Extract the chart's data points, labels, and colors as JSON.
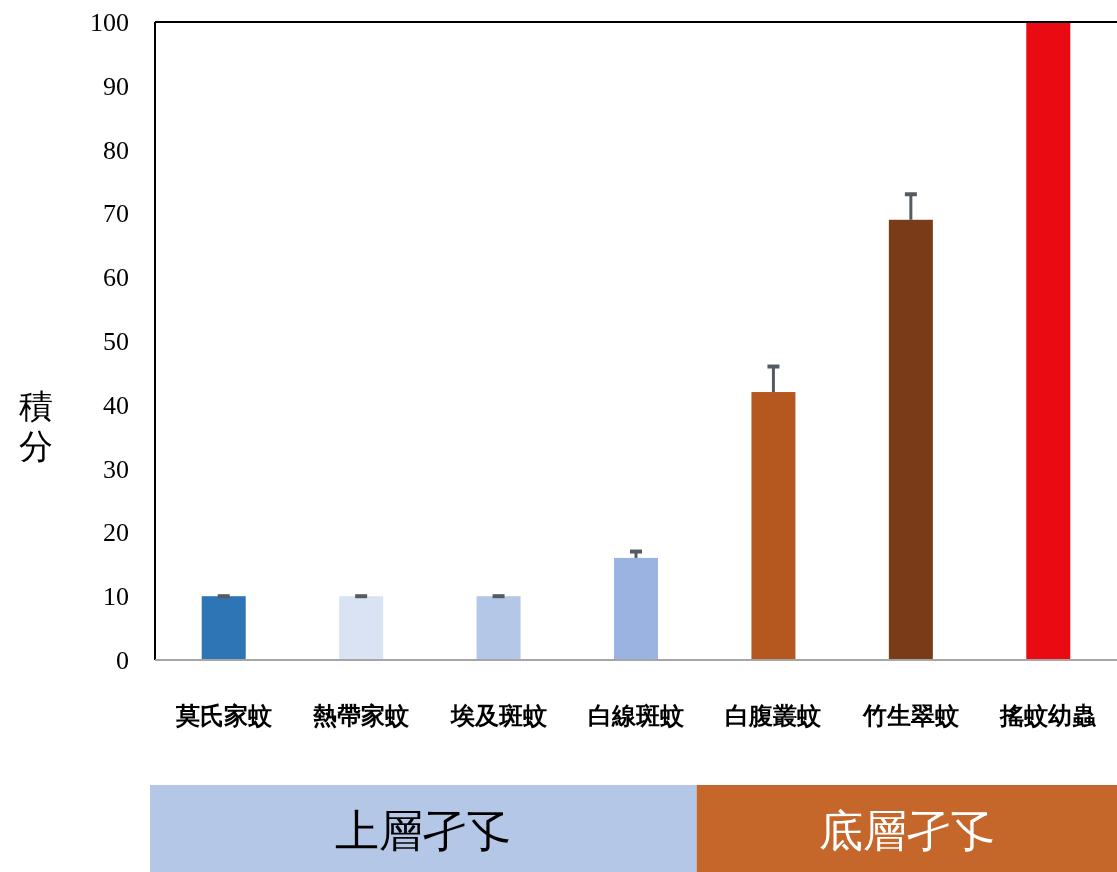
{
  "chart_data": {
    "type": "bar",
    "ylabel": "積分",
    "categories": [
      "莫氏家蚊",
      "熱帶家蚊",
      "埃及斑蚊",
      "白線斑蚊",
      "白腹叢蚊",
      "竹生翠蚊",
      "搖蚊幼蟲"
    ],
    "values": [
      10,
      10,
      10,
      16,
      42,
      69,
      100
    ],
    "colors": [
      "#2e75b6",
      "#dae3f3",
      "#b4c7e7",
      "#9bb3e0",
      "#b5581f",
      "#7a3c18",
      "#ea0a12"
    ],
    "errors": [
      [
        10,
        10
      ],
      [
        10,
        10
      ],
      [
        10,
        10
      ],
      [
        16,
        17
      ],
      [
        42,
        46
      ],
      [
        69,
        73
      ],
      null
    ],
    "ylim": [
      0,
      100
    ],
    "yticks": [
      0,
      10,
      20,
      30,
      40,
      50,
      60,
      70,
      80,
      90,
      100
    ],
    "grid": false,
    "annotations": [
      "上層孑孓",
      "底層孑孓"
    ]
  }
}
